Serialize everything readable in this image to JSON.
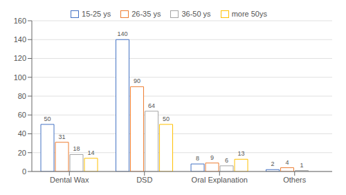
{
  "chart_data": {
    "type": "bar",
    "categories": [
      "Dental Wax",
      "DSD",
      "Oral Explanation",
      "Others"
    ],
    "series": [
      {
        "name": "15-25 ys",
        "color": "#4472C4",
        "values": [
          50,
          140,
          8,
          2
        ]
      },
      {
        "name": "26-35 ys",
        "color": "#ED7D31",
        "values": [
          31,
          90,
          9,
          4
        ]
      },
      {
        "name": "36-50 ys",
        "color": "#A5A5A5",
        "values": [
          18,
          64,
          6,
          1
        ]
      },
      {
        "name": "more 50ys",
        "color": "#FFC000",
        "values": [
          14,
          50,
          13,
          0
        ]
      }
    ],
    "ylim": [
      0,
      160
    ],
    "yticks": [
      0,
      20,
      40,
      60,
      80,
      100,
      120,
      140,
      160
    ],
    "grid": true,
    "legend": "top",
    "data_labels": true
  }
}
